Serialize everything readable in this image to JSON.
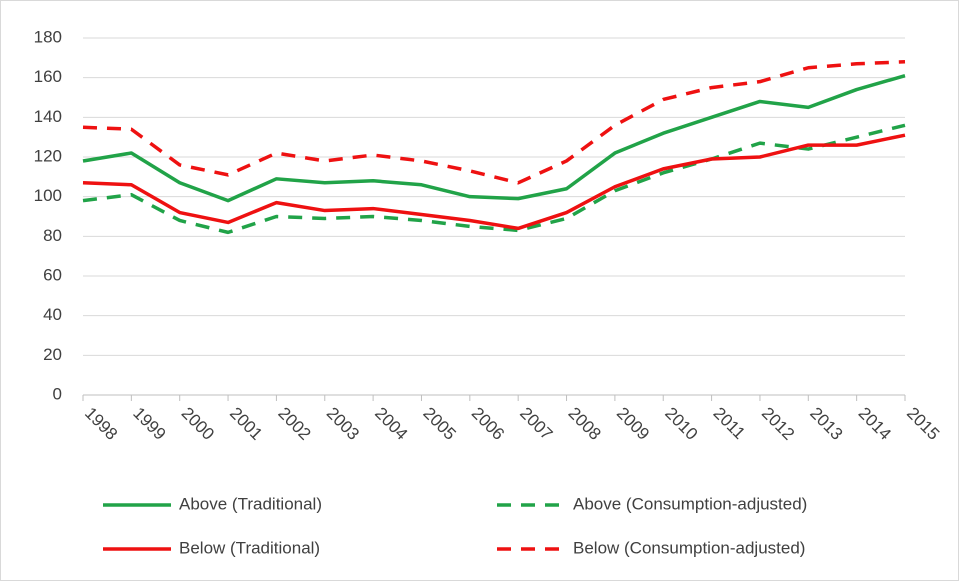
{
  "chart_data": {
    "type": "line",
    "categories": [
      "1998",
      "1999",
      "2000",
      "2001",
      "2002",
      "2003",
      "2004",
      "2005",
      "2006",
      "2007",
      "2008",
      "2009",
      "2010",
      "2011",
      "2012",
      "2013",
      "2014",
      "2015"
    ],
    "series": [
      {
        "name": "Above (Traditional)",
        "color": "#21a348",
        "dash": false,
        "values": [
          118,
          122,
          107,
          98,
          109,
          107,
          108,
          106,
          100,
          99,
          104,
          122,
          132,
          140,
          148,
          145,
          154,
          161
        ]
      },
      {
        "name": "Above (Consumption-adjusted)",
        "color": "#21a348",
        "dash": true,
        "values": [
          98,
          101,
          88,
          82,
          90,
          89,
          90,
          88,
          85,
          83,
          89,
          103,
          112,
          119,
          127,
          124,
          130,
          136
        ]
      },
      {
        "name": "Below (Traditional)",
        "color": "#ee1111",
        "dash": false,
        "values": [
          107,
          106,
          92,
          87,
          97,
          93,
          94,
          91,
          88,
          84,
          92,
          105,
          114,
          119,
          120,
          126,
          126,
          131
        ]
      },
      {
        "name": "Below (Consumption-adjusted)",
        "color": "#ee1111",
        "dash": true,
        "values": [
          135,
          134,
          116,
          111,
          122,
          118,
          121,
          118,
          113,
          107,
          118,
          136,
          149,
          155,
          158,
          165,
          167,
          168
        ]
      }
    ],
    "ylim": [
      0,
      180
    ],
    "yticks": [
      0,
      20,
      40,
      60,
      80,
      100,
      120,
      140,
      160,
      180
    ],
    "grid": true
  }
}
